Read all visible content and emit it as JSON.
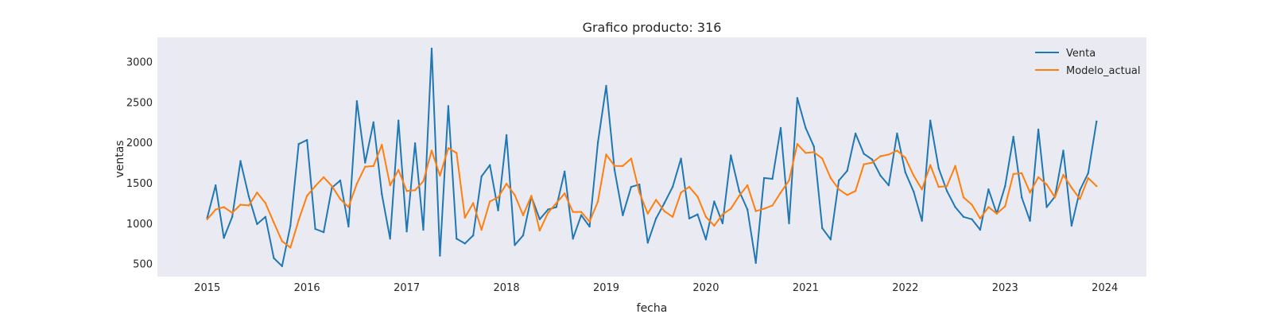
{
  "chart_data": {
    "type": "line",
    "title": "Grafico producto: 316",
    "xlabel": "fecha",
    "ylabel": "ventas",
    "x_start": "2015-01",
    "x_ticks": [
      "2015",
      "2016",
      "2017",
      "2018",
      "2019",
      "2020",
      "2021",
      "2022",
      "2023",
      "2024"
    ],
    "y_ticks": [
      500,
      1000,
      1500,
      2000,
      2500,
      3000
    ],
    "xlim": [
      "2014-07",
      "2024-06"
    ],
    "ylim": [
      340,
      3300
    ],
    "grid": false,
    "legend_position": "top-right",
    "background_color": "#eaeaf2",
    "series": [
      {
        "name": "Venta",
        "color": "#1f77b4",
        "values": [
          1070,
          1470,
          820,
          1080,
          1770,
          1330,
          990,
          1080,
          570,
          470,
          970,
          1980,
          2030,
          930,
          890,
          1440,
          1530,
          960,
          2510,
          1750,
          2250,
          1360,
          810,
          2270,
          900,
          1990,
          920,
          3160,
          600,
          2450,
          810,
          750,
          850,
          1580,
          1720,
          1160,
          2090,
          730,
          850,
          1330,
          1050,
          1170,
          1200,
          1640,
          810,
          1100,
          960,
          2000,
          2700,
          1660,
          1100,
          1450,
          1480,
          760,
          1060,
          1250,
          1450,
          1800,
          1060,
          1110,
          800,
          1270,
          1000,
          1840,
          1400,
          1170,
          510,
          1560,
          1550,
          2180,
          1000,
          2550,
          2180,
          1950,
          940,
          800,
          1530,
          1650,
          2110,
          1860,
          1790,
          1590,
          1470,
          2110,
          1630,
          1390,
          1030,
          2270,
          1680,
          1400,
          1200,
          1080,
          1050,
          920,
          1420,
          1120,
          1460,
          2070,
          1320,
          1030,
          2160,
          1200,
          1330,
          1900,
          970,
          1410,
          1620,
          2260
        ]
      },
      {
        "name": "Modelo_actual",
        "color": "#ff7f0e",
        "values": [
          1050,
          1170,
          1200,
          1130,
          1230,
          1220,
          1380,
          1250,
          1010,
          780,
          700,
          1040,
          1340,
          1460,
          1570,
          1460,
          1300,
          1200,
          1490,
          1700,
          1710,
          1970,
          1470,
          1660,
          1400,
          1410,
          1520,
          1900,
          1590,
          1930,
          1870,
          1070,
          1250,
          920,
          1270,
          1320,
          1490,
          1350,
          1100,
          1340,
          910,
          1130,
          1250,
          1370,
          1140,
          1140,
          1020,
          1270,
          1850,
          1710,
          1710,
          1800,
          1380,
          1120,
          1290,
          1150,
          1080,
          1380,
          1450,
          1330,
          1080,
          970,
          1110,
          1180,
          1340,
          1470,
          1150,
          1180,
          1220,
          1380,
          1530,
          1980,
          1870,
          1880,
          1800,
          1560,
          1420,
          1350,
          1400,
          1730,
          1750,
          1830,
          1850,
          1900,
          1810,
          1590,
          1420,
          1720,
          1450,
          1460,
          1710,
          1320,
          1230,
          1060,
          1200,
          1120,
          1210,
          1610,
          1620,
          1380,
          1570,
          1480,
          1320,
          1600,
          1440,
          1300,
          1560,
          1460
        ]
      }
    ]
  }
}
